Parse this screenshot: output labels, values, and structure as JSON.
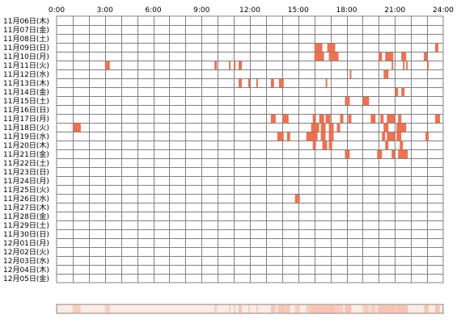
{
  "chart_data": {
    "type": "heatmap",
    "title": "",
    "xlabel": "",
    "ylabel": "",
    "x_ticks": [
      "0:00",
      "3:00",
      "6:00",
      "9:00",
      "12:00",
      "15:00",
      "18:00",
      "21:00",
      "24:00"
    ],
    "xlim": [
      0,
      24
    ],
    "rows": [
      "11月06日(木)",
      "11月07日(金)",
      "11月08日(土)",
      "11月09日(日)",
      "11月10日(月)",
      "11月11日(火)",
      "11月12日(水)",
      "11月13日(木)",
      "11月14日(金)",
      "11月15日(土)",
      "11月16日(日)",
      "11月17日(月)",
      "11月18日(火)",
      "11月19日(水)",
      "11月20日(木)",
      "11月21日(金)",
      "11月22日(土)",
      "11月23日(日)",
      "11月24日(月)",
      "11月25日(火)",
      "11月26日(水)",
      "11月27日(木)",
      "11月28日(金)",
      "11月29日(土)",
      "11月30日(日)",
      "12月01日(月)",
      "12月02日(火)",
      "12月03日(水)",
      "12月04日(木)",
      "12月05日(金)"
    ],
    "grid": true,
    "colors": {
      "bar": "#f07050",
      "grid": "#808080",
      "summary_bg": "#fdece4",
      "summary_mark": "#f8c2ae"
    },
    "activity": [
      [],
      [],
      [],
      [
        [
          16.0,
          16.5
        ],
        [
          16.8,
          17.3
        ],
        [
          23.5,
          23.7
        ]
      ],
      [
        [
          16.0,
          16.6
        ],
        [
          16.9,
          17.5
        ],
        [
          20.0,
          20.2
        ],
        [
          20.4,
          20.9
        ],
        [
          21.4,
          21.7
        ],
        [
          22.8,
          23.0
        ]
      ],
      [
        [
          3.0,
          3.3
        ],
        [
          9.8,
          9.95
        ],
        [
          10.7,
          10.8
        ],
        [
          11.0,
          11.1
        ],
        [
          11.3,
          11.5
        ],
        [
          20.8,
          20.9
        ],
        [
          21.5,
          21.6
        ],
        [
          21.7,
          21.8
        ],
        [
          23.0,
          23.1
        ]
      ],
      [
        [
          18.2,
          18.3
        ],
        [
          20.3,
          20.6
        ]
      ],
      [
        [
          11.3,
          11.5
        ],
        [
          11.9,
          12.0
        ],
        [
          12.4,
          12.5
        ],
        [
          13.3,
          13.5
        ],
        [
          13.8,
          14.1
        ],
        [
          16.7,
          16.8
        ]
      ],
      [
        [
          21.0,
          21.2
        ],
        [
          21.4,
          21.6
        ]
      ],
      [
        [
          17.9,
          18.2
        ],
        [
          19.0,
          19.4
        ]
      ],
      [],
      [
        [
          13.3,
          13.6
        ],
        [
          14.0,
          14.4
        ],
        [
          15.9,
          16.1
        ],
        [
          16.3,
          16.6
        ],
        [
          16.7,
          17.0
        ],
        [
          17.6,
          17.8
        ],
        [
          18.1,
          18.3
        ],
        [
          19.5,
          19.8
        ],
        [
          20.1,
          20.3
        ],
        [
          20.5,
          21.0
        ],
        [
          21.2,
          21.4
        ],
        [
          23.5,
          23.8
        ]
      ],
      [
        [
          1.0,
          1.5
        ],
        [
          15.8,
          16.3
        ],
        [
          16.4,
          16.7
        ],
        [
          16.9,
          17.2
        ],
        [
          17.4,
          17.6
        ],
        [
          20.3,
          20.6
        ],
        [
          21.1,
          21.7
        ]
      ],
      [
        [
          13.7,
          14.1
        ],
        [
          14.3,
          14.5
        ],
        [
          15.5,
          16.2
        ],
        [
          16.4,
          16.7
        ],
        [
          16.9,
          17.2
        ],
        [
          20.2,
          20.4
        ],
        [
          20.5,
          21.0
        ],
        [
          21.1,
          21.4
        ],
        [
          22.9,
          23.1
        ]
      ],
      [
        [
          15.9,
          16.1
        ],
        [
          16.5,
          16.8
        ],
        [
          16.9,
          17.1
        ],
        [
          20.4,
          20.6
        ],
        [
          21.3,
          21.5
        ]
      ],
      [
        [
          17.9,
          18.2
        ],
        [
          19.9,
          20.2
        ],
        [
          20.8,
          21.0
        ],
        [
          21.2,
          21.8
        ]
      ],
      [],
      [],
      [],
      [],
      [
        [
          14.8,
          15.1
        ]
      ],
      [],
      [],
      [],
      [],
      [],
      [],
      [],
      [],
      []
    ]
  }
}
